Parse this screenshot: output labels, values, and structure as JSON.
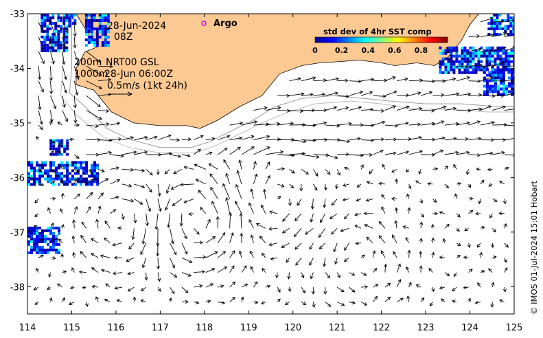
{
  "map": {
    "lon_range": [
      114,
      125
    ],
    "lat_range": [
      -38.5,
      -33
    ],
    "lon_ticks": [
      114,
      115,
      116,
      117,
      118,
      119,
      120,
      121,
      122,
      123,
      124,
      125
    ],
    "lat_ticks": [
      -33,
      -34,
      -35,
      -36,
      -37,
      -38
    ],
    "lat_tick_labels": [
      "-33",
      "-34",
      "-35",
      "-36",
      "-37",
      "-38"
    ],
    "land_color": "#fdc993",
    "coast": [
      [
        115.1,
        -33.0
      ],
      [
        115.4,
        -33.4
      ],
      [
        115.6,
        -33.6
      ],
      [
        115.3,
        -33.7
      ],
      [
        115.1,
        -34.0
      ],
      [
        115.1,
        -34.3
      ],
      [
        115.5,
        -34.4
      ],
      [
        115.9,
        -34.8
      ],
      [
        116.4,
        -35.0
      ],
      [
        117.0,
        -35.05
      ],
      [
        117.6,
        -35.05
      ],
      [
        117.9,
        -35.1
      ],
      [
        118.3,
        -34.95
      ],
      [
        118.8,
        -34.7
      ],
      [
        119.3,
        -34.5
      ],
      [
        119.7,
        -34.1
      ],
      [
        120.2,
        -33.95
      ],
      [
        120.6,
        -33.9
      ],
      [
        121.0,
        -33.88
      ],
      [
        121.5,
        -33.85
      ],
      [
        122.0,
        -33.9
      ],
      [
        122.3,
        -33.95
      ],
      [
        122.8,
        -33.9
      ],
      [
        123.2,
        -33.95
      ],
      [
        123.5,
        -33.8
      ],
      [
        123.8,
        -33.5
      ],
      [
        124.0,
        -33.2
      ],
      [
        124.2,
        -33.0
      ]
    ],
    "isobath_200": [
      [
        115.0,
        -33.0
      ],
      [
        115.0,
        -34.0
      ],
      [
        114.95,
        -34.45
      ],
      [
        115.3,
        -34.7
      ],
      [
        115.8,
        -35.1
      ],
      [
        116.3,
        -35.3
      ],
      [
        117.0,
        -35.45
      ],
      [
        117.7,
        -35.45
      ],
      [
        118.1,
        -35.35
      ],
      [
        118.6,
        -35.15
      ],
      [
        119.1,
        -34.95
      ],
      [
        119.6,
        -34.7
      ],
      [
        120.2,
        -34.55
      ],
      [
        120.9,
        -34.5
      ],
      [
        121.6,
        -34.55
      ],
      [
        122.2,
        -34.6
      ],
      [
        123.0,
        -34.65
      ],
      [
        123.8,
        -34.65
      ],
      [
        124.6,
        -34.7
      ],
      [
        125.0,
        -34.7
      ]
    ],
    "isobath_1000": [
      [
        114.8,
        -33.0
      ],
      [
        114.8,
        -34.0
      ],
      [
        114.75,
        -34.5
      ],
      [
        115.1,
        -34.85
      ],
      [
        115.7,
        -35.25
      ],
      [
        116.3,
        -35.45
      ],
      [
        117.0,
        -35.55
      ],
      [
        117.8,
        -35.55
      ],
      [
        118.3,
        -35.4
      ],
      [
        118.8,
        -35.2
      ],
      [
        119.3,
        -35.0
      ],
      [
        119.9,
        -34.8
      ],
      [
        120.5,
        -34.65
      ],
      [
        121.3,
        -34.6
      ],
      [
        122.0,
        -34.65
      ],
      [
        122.8,
        -34.75
      ],
      [
        123.6,
        -34.75
      ],
      [
        124.4,
        -34.8
      ],
      [
        125.0,
        -34.8
      ]
    ],
    "labels": {
      "date": "28-Jun-2024",
      "hour": "08Z",
      "depth_200": "200m",
      "product": "NRT00 GSL",
      "depth_1000": "1000m",
      "time": "28-Jun 06:00Z",
      "scale": "0.5m/s (1kt 24h)"
    },
    "legend": {
      "argo_label": "Argo",
      "argo_color": "#e000e0"
    },
    "colorbar": {
      "title": "std dev of 4hr SST comp",
      "ticks": [
        "0",
        "0.2",
        "0.4",
        "0.6",
        "0.8",
        "1"
      ],
      "colors": [
        "#00008f",
        "#0000ff",
        "#0080ff",
        "#00ffff",
        "#80ff80",
        "#ffff00",
        "#ff8000",
        "#ff0000",
        "#800000"
      ]
    },
    "credit": "© IMOS 01-Jul-2024 15:01 Hobart"
  }
}
